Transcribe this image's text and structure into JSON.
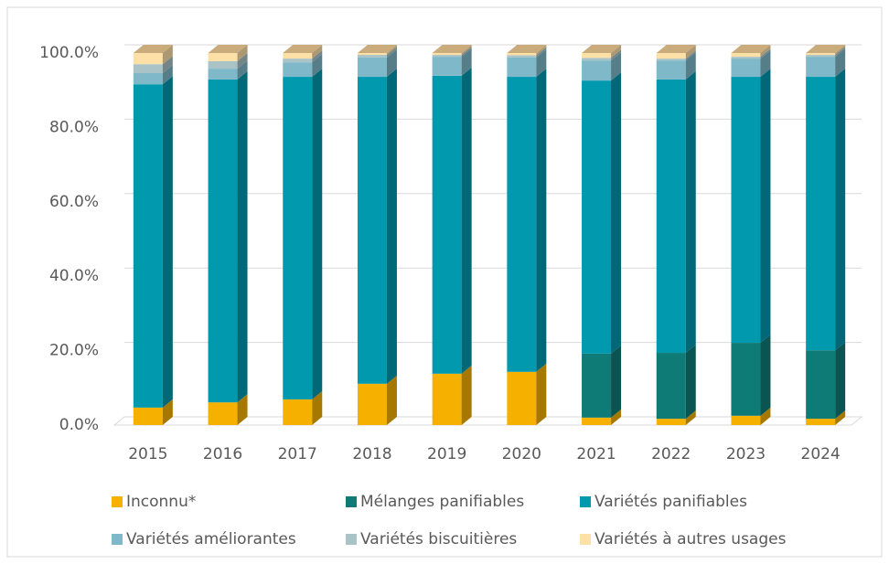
{
  "chart_data": {
    "type": "bar",
    "stacked": true,
    "categories": [
      "2015",
      "2016",
      "2017",
      "2018",
      "2019",
      "2020",
      "2021",
      "2022",
      "2023",
      "2024"
    ],
    "series": [
      {
        "name": "Inconnu*",
        "color": "#f5b000",
        "values": [
          4.7,
          6.1,
          6.9,
          11.1,
          13.8,
          14.3,
          2.0,
          1.7,
          2.5,
          1.7
        ]
      },
      {
        "name": "Mélanges panifiables",
        "color": "#0e7b77",
        "values": [
          0,
          0,
          0,
          0,
          0,
          0,
          17.2,
          17.7,
          19.6,
          18.4
        ]
      },
      {
        "name": "Variétés panifiables",
        "color": "#0099ad",
        "values": [
          86.9,
          86.8,
          86.7,
          82.5,
          80.1,
          79.3,
          73.4,
          73.5,
          71.5,
          73.5
        ]
      },
      {
        "name": "Variétés améliorantes",
        "color": "#7fb9c9",
        "values": [
          3.0,
          2.9,
          3.9,
          5.2,
          5.1,
          5.2,
          5.4,
          5.1,
          4.9,
          5.4
        ]
      },
      {
        "name": "Variétés biscuitières",
        "color": "#a9c3c7",
        "values": [
          2.4,
          2.0,
          1.0,
          0.7,
          0.5,
          0.6,
          0.7,
          0.5,
          0.5,
          0.5
        ]
      },
      {
        "name": "Variétés à autres usages",
        "color": "#fde0a6",
        "values": [
          3.0,
          2.2,
          1.5,
          0.5,
          0.5,
          0.6,
          1.3,
          1.5,
          1.0,
          0.5
        ]
      }
    ],
    "ylim": [
      0,
      100
    ],
    "yticks": [
      {
        "value": 0,
        "label": "0.0%"
      },
      {
        "value": 20,
        "label": "20.0%"
      },
      {
        "value": 40,
        "label": "40.0%"
      },
      {
        "value": 60,
        "label": "60.0%"
      },
      {
        "value": 80,
        "label": "80.0%"
      },
      {
        "value": 100,
        "label": "100.0%"
      }
    ],
    "grid": true,
    "legend": "bottom"
  }
}
